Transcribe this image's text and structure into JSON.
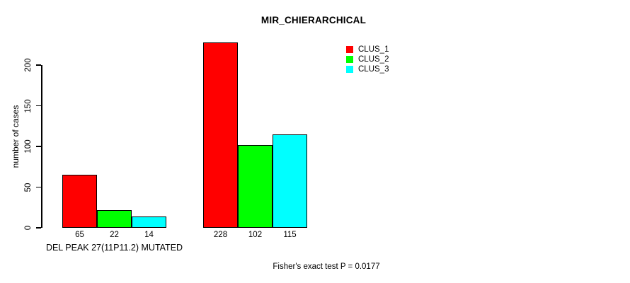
{
  "chart_data": {
    "type": "bar",
    "title": "MIR_CHIERARCHICAL",
    "ylabel": "number of cases",
    "xlabel": "",
    "yticks": [
      0,
      50,
      100,
      150,
      200
    ],
    "ylim": [
      0,
      230
    ],
    "grid": false,
    "legend_position": "top-right",
    "group_labels": [
      "DEL PEAK 27(11P11.2) MUTATED",
      ""
    ],
    "series": [
      {
        "name": "CLUS_1",
        "color": "#ff0000",
        "values": [
          65,
          228
        ]
      },
      {
        "name": "CLUS_2",
        "color": "#00ff00",
        "values": [
          22,
          102
        ]
      },
      {
        "name": "CLUS_3",
        "color": "#00ffff",
        "values": [
          14,
          115
        ]
      }
    ],
    "bar_value_labels": [
      [
        65,
        22,
        14
      ],
      [
        228,
        102,
        115
      ]
    ],
    "annotation": "Fisher's exact test P = 0.0177"
  }
}
